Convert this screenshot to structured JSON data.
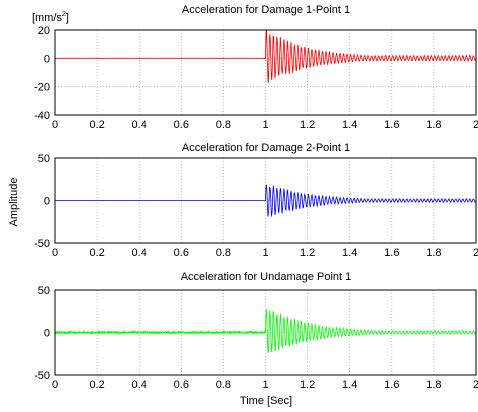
{
  "figure": {
    "ylabel": "Amplitude",
    "xlabel": "Time [Sec]"
  },
  "chart_data": [
    {
      "type": "line",
      "title": "Acceleration for Damage 1-Point 1",
      "unit_label": "[mm/s²]",
      "unit_base": "[mm/s",
      "unit_sup": "2",
      "unit_end": "]",
      "color": "#ff0000",
      "xlim": [
        0,
        2
      ],
      "ylim": [
        -40,
        20
      ],
      "x_ticks": [
        "0",
        "0.2",
        "0.4",
        "0.6",
        "0.8",
        "1",
        "1.2",
        "1.4",
        "1.6",
        "1.8",
        "2"
      ],
      "y_ticks": [
        "20",
        "0",
        "-20",
        "-40"
      ],
      "y_tick_values": [
        20,
        0,
        -20,
        -40
      ],
      "grid": true,
      "signal": {
        "impact_time": 1.0,
        "peak_amplitude": 22,
        "negative_peak": -20,
        "decay_rate": 5,
        "frequency_hz": 60,
        "residual_amplitude": 2
      }
    },
    {
      "type": "line",
      "title": "Acceleration for Damage 2-Point 1",
      "color": "#0000ff",
      "xlim": [
        0,
        2
      ],
      "ylim": [
        -50,
        50
      ],
      "x_ticks": [
        "0",
        "0.2",
        "0.4",
        "0.6",
        "0.8",
        "1",
        "1.2",
        "1.4",
        "1.6",
        "1.8",
        "2"
      ],
      "y_ticks": [
        "50",
        "0",
        "-50"
      ],
      "y_tick_values": [
        50,
        0,
        -50
      ],
      "grid": true,
      "signal": {
        "impact_time": 1.0,
        "peak_amplitude": 22,
        "negative_peak": -23,
        "decay_rate": 5,
        "frequency_hz": 60,
        "residual_amplitude": 2
      }
    },
    {
      "type": "line",
      "title": "Acceleration for Undamage Point 1",
      "color": "#00ff00",
      "xlim": [
        0,
        2
      ],
      "ylim": [
        -50,
        50
      ],
      "x_ticks": [
        "0",
        "0.2",
        "0.4",
        "0.6",
        "0.8",
        "1",
        "1.2",
        "1.4",
        "1.6",
        "1.8",
        "2"
      ],
      "y_ticks": [
        "50",
        "0",
        "-50"
      ],
      "y_tick_values": [
        50,
        0,
        -50
      ],
      "grid": true,
      "signal": {
        "impact_time": 1.0,
        "peak_amplitude": 32,
        "negative_peak": -30,
        "decay_rate": 5,
        "frequency_hz": 60,
        "residual_amplitude": 2,
        "pre_noise_amplitude": 1.2
      }
    }
  ]
}
